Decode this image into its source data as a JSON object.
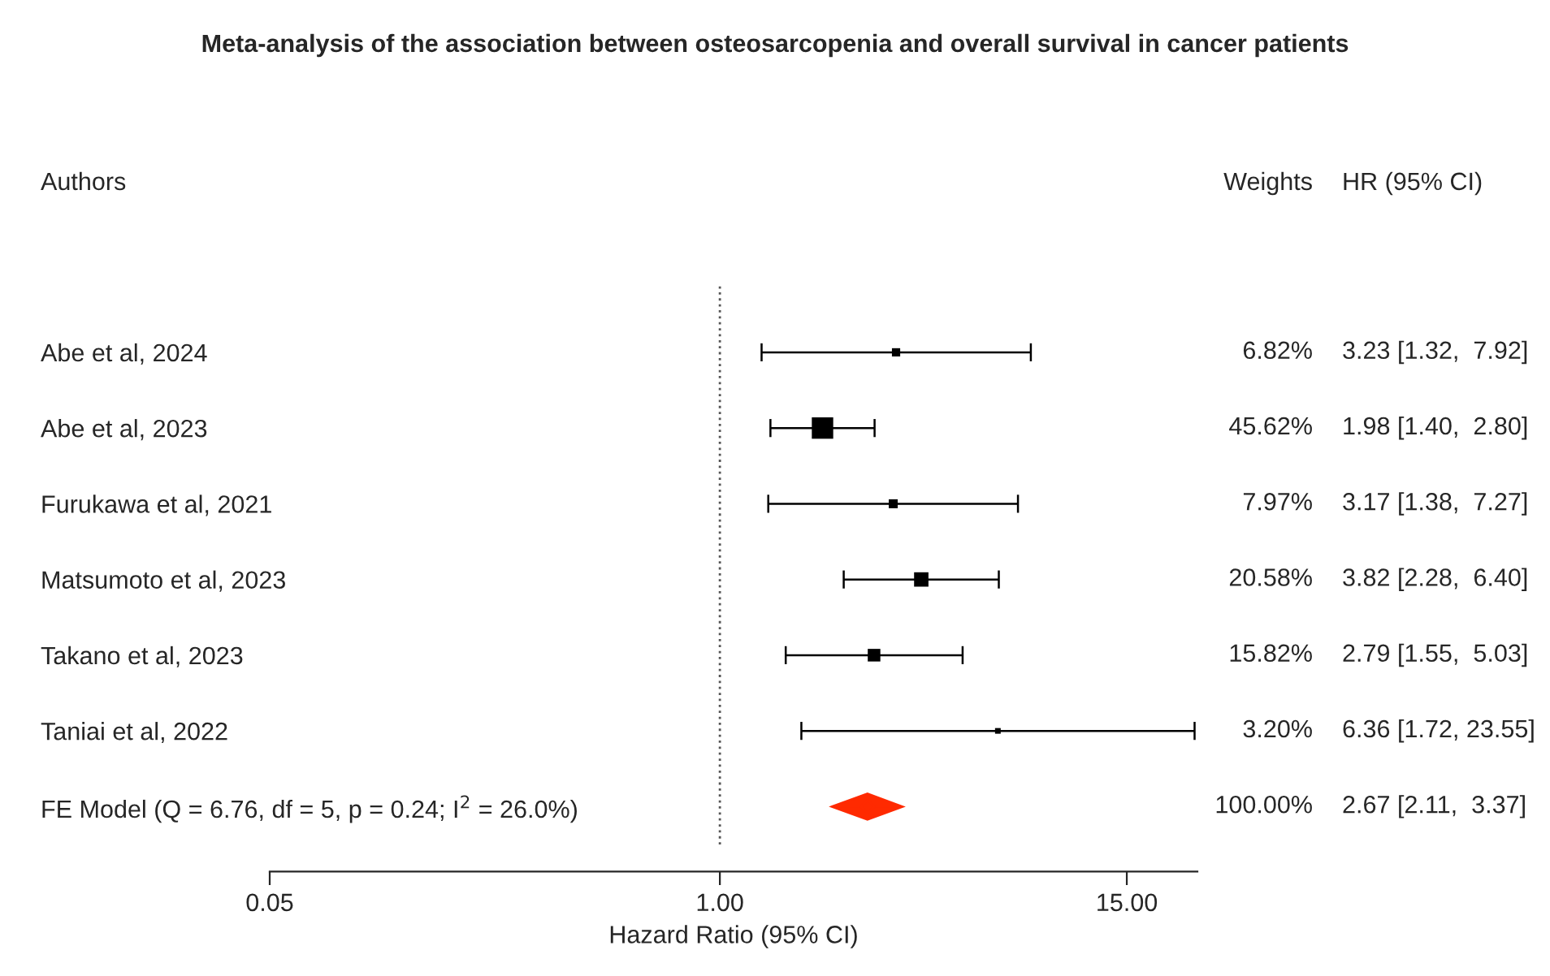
{
  "chart_data": {
    "type": "scatter",
    "orientation": "horizontal",
    "title": "Meta-analysis of the association between osteosarcopenia and overall survival in cancer patients",
    "xlabel": "Hazard Ratio (95% CI)",
    "log": "x",
    "categories": [
      "Abe et al, 2024",
      "Abe et al, 2023",
      "Furukawa et al, 2021",
      "Matsumoto et al, 2023",
      "Takano et al, 2023",
      "Taniai et al, 2022",
      "FE Model (Q = 6.76, df = 5, p = 0.24; I$^{2}$ = 26.0%)"
    ],
    "xlim": [
      0.05,
      24
    ],
    "xticks": [
      {
        "value": 0.05,
        "label": "0.05"
      },
      {
        "value": 1,
        "label": "1.00"
      },
      {
        "value": 15,
        "label": "15.00"
      }
    ],
    "series": [
      {
        "marker": "square",
        "color": "#000000",
        "values": [
          3.23,
          1.98,
          3.17,
          3.82,
          2.79,
          6.36,
          null
        ],
        "errors": [
          [
            1.32,
            7.92
          ],
          [
            1.4,
            2.8
          ],
          [
            1.38,
            7.27
          ],
          [
            2.28,
            6.4
          ],
          [
            1.55,
            5.03
          ],
          [
            1.72,
            23.55
          ],
          null
        ],
        "sizes": [
          0.149,
          1,
          0.175,
          0.451,
          0.347,
          0.07,
          null
        ],
        "value_labels": [
          "3.23 [1.32,  7.92]",
          "1.98 [1.40,  2.80]",
          "3.17 [1.38,  7.27]",
          "3.82 [2.28,  6.40]",
          "2.79 [1.55,  5.03]",
          "6.36 [1.72, 23.55]",
          null
        ]
      },
      {
        "marker": "diamond",
        "color": "#ff2a00",
        "values": [
          null,
          null,
          null,
          null,
          null,
          null,
          2.67
        ],
        "errors": [
          null,
          null,
          null,
          null,
          null,
          null,
          [
            2.11,
            3.37
          ]
        ]
      }
    ],
    "ref_lines": [
      {
        "axis": "x",
        "value": 1,
        "line_style": "dotted",
        "color": "#555555"
      }
    ],
    "annotations": [
      "Authors",
      "Weights",
      "HR (95% CI)",
      "6.82%",
      "45.62%",
      "7.97%",
      "20.58%",
      "15.82%",
      "3.20%",
      "100.00%",
      "2.67 [2.11,  3.37]"
    ],
    "grid": false,
    "legend": false
  }
}
